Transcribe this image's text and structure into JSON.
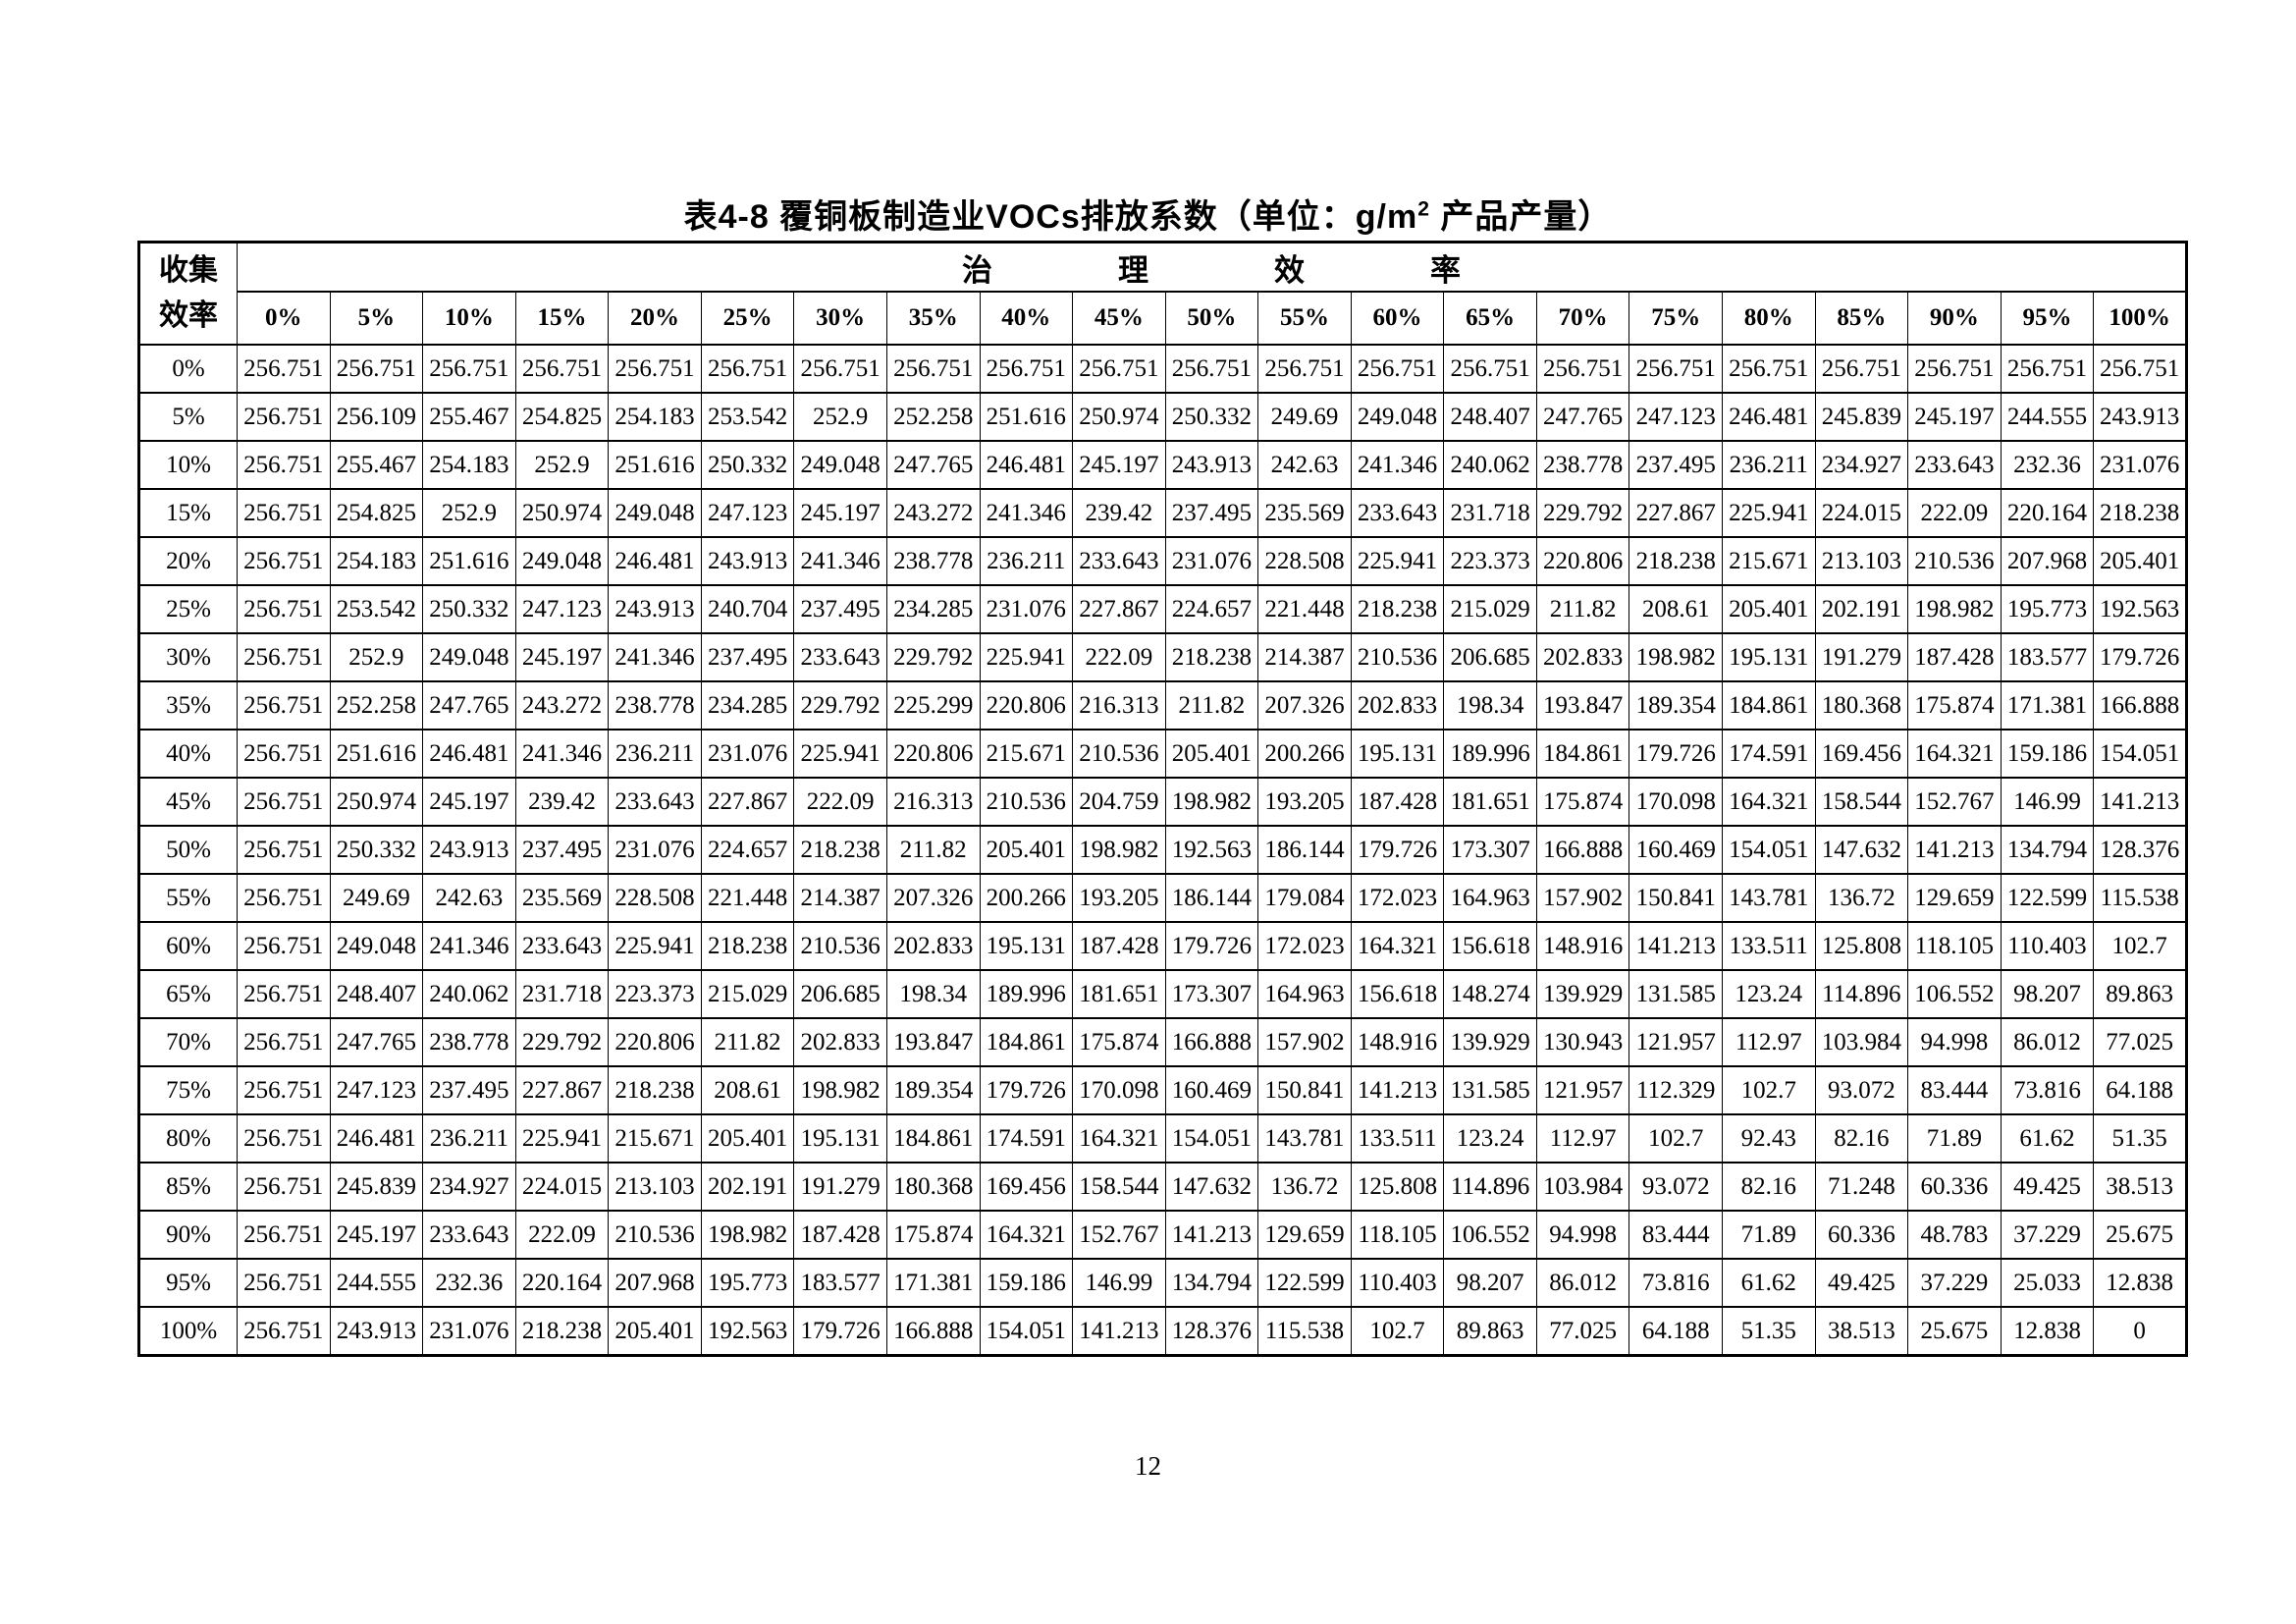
{
  "title": {
    "prefix": "表4-8 覆铜板制造业VOCs排放系数（单位：g/m",
    "sup": "2",
    "suffix": " 产品产量）"
  },
  "page_number": "12",
  "table": {
    "corner_line1": "收集",
    "corner_line2": "效率",
    "top_header": "治理效率",
    "col_headers": [
      "0%",
      "5%",
      "10%",
      "15%",
      "20%",
      "25%",
      "30%",
      "35%",
      "40%",
      "45%",
      "50%",
      "55%",
      "60%",
      "65%",
      "70%",
      "75%",
      "80%",
      "85%",
      "90%",
      "95%",
      "100%"
    ],
    "rows": [
      {
        "label": "0%",
        "values": [
          256.751,
          256.751,
          256.751,
          256.751,
          256.751,
          256.751,
          256.751,
          256.751,
          256.751,
          256.751,
          256.751,
          256.751,
          256.751,
          256.751,
          256.751,
          256.751,
          256.751,
          256.751,
          256.751,
          256.751,
          256.751
        ]
      },
      {
        "label": "5%",
        "values": [
          256.751,
          256.109,
          255.467,
          254.825,
          254.183,
          253.542,
          252.9,
          252.258,
          251.616,
          250.974,
          250.332,
          249.69,
          249.048,
          248.407,
          247.765,
          247.123,
          246.481,
          245.839,
          245.197,
          244.555,
          243.913
        ]
      },
      {
        "label": "10%",
        "values": [
          256.751,
          255.467,
          254.183,
          252.9,
          251.616,
          250.332,
          249.048,
          247.765,
          246.481,
          245.197,
          243.913,
          242.63,
          241.346,
          240.062,
          238.778,
          237.495,
          236.211,
          234.927,
          233.643,
          232.36,
          231.076
        ]
      },
      {
        "label": "15%",
        "values": [
          256.751,
          254.825,
          252.9,
          250.974,
          249.048,
          247.123,
          245.197,
          243.272,
          241.346,
          239.42,
          237.495,
          235.569,
          233.643,
          231.718,
          229.792,
          227.867,
          225.941,
          224.015,
          222.09,
          220.164,
          218.238
        ]
      },
      {
        "label": "20%",
        "values": [
          256.751,
          254.183,
          251.616,
          249.048,
          246.481,
          243.913,
          241.346,
          238.778,
          236.211,
          233.643,
          231.076,
          228.508,
          225.941,
          223.373,
          220.806,
          218.238,
          215.671,
          213.103,
          210.536,
          207.968,
          205.401
        ]
      },
      {
        "label": "25%",
        "values": [
          256.751,
          253.542,
          250.332,
          247.123,
          243.913,
          240.704,
          237.495,
          234.285,
          231.076,
          227.867,
          224.657,
          221.448,
          218.238,
          215.029,
          211.82,
          208.61,
          205.401,
          202.191,
          198.982,
          195.773,
          192.563
        ]
      },
      {
        "label": "30%",
        "values": [
          256.751,
          252.9,
          249.048,
          245.197,
          241.346,
          237.495,
          233.643,
          229.792,
          225.941,
          222.09,
          218.238,
          214.387,
          210.536,
          206.685,
          202.833,
          198.982,
          195.131,
          191.279,
          187.428,
          183.577,
          179.726
        ]
      },
      {
        "label": "35%",
        "values": [
          256.751,
          252.258,
          247.765,
          243.272,
          238.778,
          234.285,
          229.792,
          225.299,
          220.806,
          216.313,
          211.82,
          207.326,
          202.833,
          198.34,
          193.847,
          189.354,
          184.861,
          180.368,
          175.874,
          171.381,
          166.888
        ]
      },
      {
        "label": "40%",
        "values": [
          256.751,
          251.616,
          246.481,
          241.346,
          236.211,
          231.076,
          225.941,
          220.806,
          215.671,
          210.536,
          205.401,
          200.266,
          195.131,
          189.996,
          184.861,
          179.726,
          174.591,
          169.456,
          164.321,
          159.186,
          154.051
        ]
      },
      {
        "label": "45%",
        "values": [
          256.751,
          250.974,
          245.197,
          239.42,
          233.643,
          227.867,
          222.09,
          216.313,
          210.536,
          204.759,
          198.982,
          193.205,
          187.428,
          181.651,
          175.874,
          170.098,
          164.321,
          158.544,
          152.767,
          146.99,
          141.213
        ]
      },
      {
        "label": "50%",
        "values": [
          256.751,
          250.332,
          243.913,
          237.495,
          231.076,
          224.657,
          218.238,
          211.82,
          205.401,
          198.982,
          192.563,
          186.144,
          179.726,
          173.307,
          166.888,
          160.469,
          154.051,
          147.632,
          141.213,
          134.794,
          128.376
        ]
      },
      {
        "label": "55%",
        "values": [
          256.751,
          249.69,
          242.63,
          235.569,
          228.508,
          221.448,
          214.387,
          207.326,
          200.266,
          193.205,
          186.144,
          179.084,
          172.023,
          164.963,
          157.902,
          150.841,
          143.781,
          136.72,
          129.659,
          122.599,
          115.538
        ]
      },
      {
        "label": "60%",
        "values": [
          256.751,
          249.048,
          241.346,
          233.643,
          225.941,
          218.238,
          210.536,
          202.833,
          195.131,
          187.428,
          179.726,
          172.023,
          164.321,
          156.618,
          148.916,
          141.213,
          133.511,
          125.808,
          118.105,
          110.403,
          102.7
        ]
      },
      {
        "label": "65%",
        "values": [
          256.751,
          248.407,
          240.062,
          231.718,
          223.373,
          215.029,
          206.685,
          198.34,
          189.996,
          181.651,
          173.307,
          164.963,
          156.618,
          148.274,
          139.929,
          131.585,
          123.24,
          114.896,
          106.552,
          98.207,
          89.863
        ]
      },
      {
        "label": "70%",
        "values": [
          256.751,
          247.765,
          238.778,
          229.792,
          220.806,
          211.82,
          202.833,
          193.847,
          184.861,
          175.874,
          166.888,
          157.902,
          148.916,
          139.929,
          130.943,
          121.957,
          112.97,
          103.984,
          94.998,
          86.012,
          77.025
        ]
      },
      {
        "label": "75%",
        "values": [
          256.751,
          247.123,
          237.495,
          227.867,
          218.238,
          208.61,
          198.982,
          189.354,
          179.726,
          170.098,
          160.469,
          150.841,
          141.213,
          131.585,
          121.957,
          112.329,
          102.7,
          93.072,
          83.444,
          73.816,
          64.188
        ]
      },
      {
        "label": "80%",
        "values": [
          256.751,
          246.481,
          236.211,
          225.941,
          215.671,
          205.401,
          195.131,
          184.861,
          174.591,
          164.321,
          154.051,
          143.781,
          133.511,
          123.24,
          112.97,
          102.7,
          92.43,
          82.16,
          71.89,
          61.62,
          51.35
        ]
      },
      {
        "label": "85%",
        "values": [
          256.751,
          245.839,
          234.927,
          224.015,
          213.103,
          202.191,
          191.279,
          180.368,
          169.456,
          158.544,
          147.632,
          136.72,
          125.808,
          114.896,
          103.984,
          93.072,
          82.16,
          71.248,
          60.336,
          49.425,
          38.513
        ]
      },
      {
        "label": "90%",
        "values": [
          256.751,
          245.197,
          233.643,
          222.09,
          210.536,
          198.982,
          187.428,
          175.874,
          164.321,
          152.767,
          141.213,
          129.659,
          118.105,
          106.552,
          94.998,
          83.444,
          71.89,
          60.336,
          48.783,
          37.229,
          25.675
        ]
      },
      {
        "label": "95%",
        "values": [
          256.751,
          244.555,
          232.36,
          220.164,
          207.968,
          195.773,
          183.577,
          171.381,
          159.186,
          146.99,
          134.794,
          122.599,
          110.403,
          98.207,
          86.012,
          73.816,
          61.62,
          49.425,
          37.229,
          25.033,
          12.838
        ]
      },
      {
        "label": "100%",
        "values": [
          256.751,
          243.913,
          231.076,
          218.238,
          205.401,
          192.563,
          179.726,
          166.888,
          154.051,
          141.213,
          128.376,
          115.538,
          102.7,
          89.863,
          77.025,
          64.188,
          51.35,
          38.513,
          25.675,
          12.838,
          0
        ]
      }
    ]
  }
}
